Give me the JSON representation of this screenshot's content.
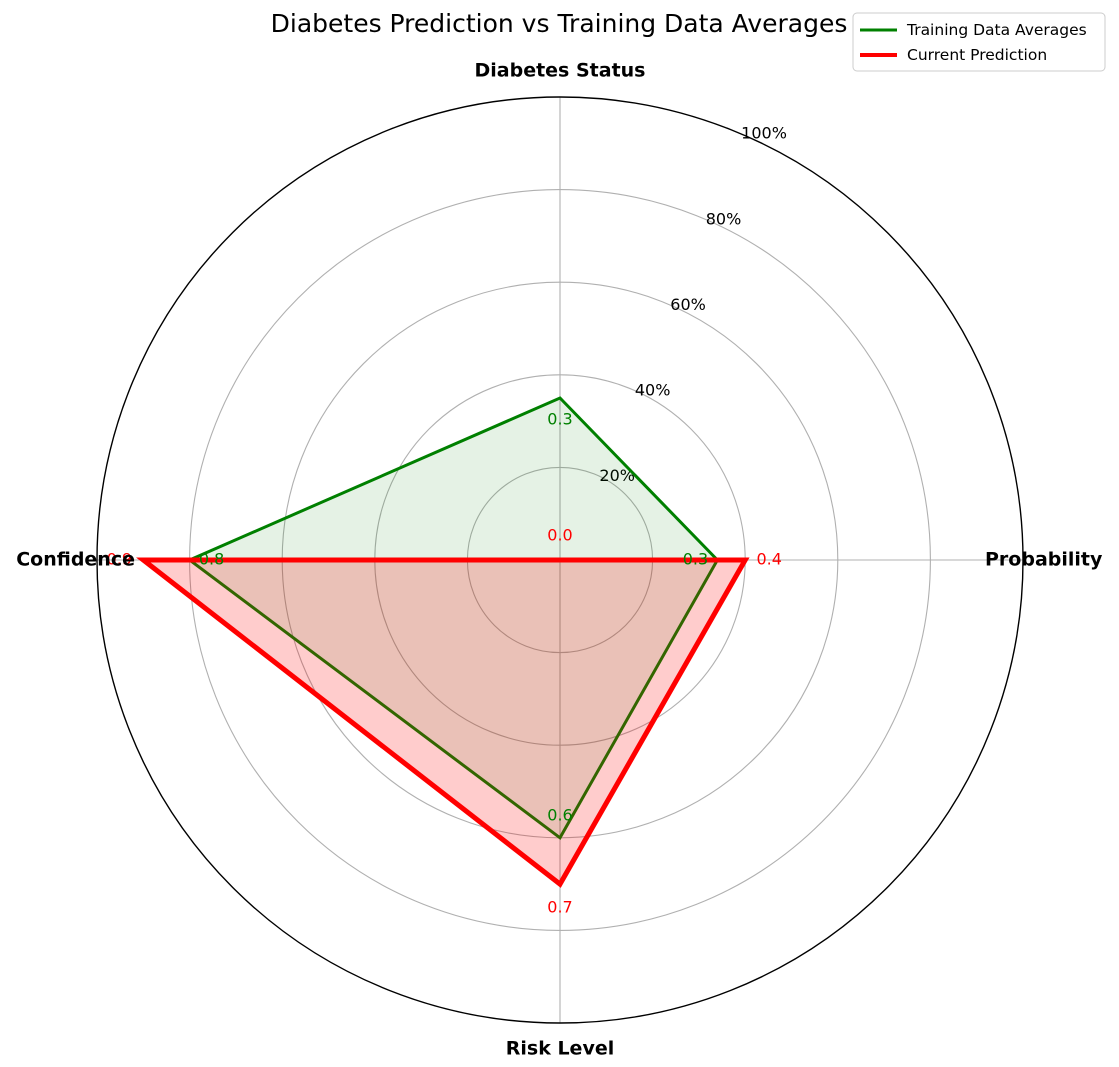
{
  "chart_data": {
    "type": "radar",
    "title": "Diabetes Prediction vs Training Data Averages",
    "axes": [
      "Probability",
      "Diabetes Status",
      "Confidence",
      "Risk Level"
    ],
    "radial_ticks": [
      0.2,
      0.4,
      0.6,
      0.8,
      1.0
    ],
    "radial_tick_labels": [
      "20%",
      "40%",
      "60%",
      "80%",
      "100%"
    ],
    "rlim": [
      0,
      1.0
    ],
    "grid": true,
    "legend_position": "top-right",
    "series": [
      {
        "name": "Training Data Averages",
        "color": "#008000",
        "values": [
          0.34,
          0.35,
          0.8,
          0.6
        ],
        "value_labels": [
          "0.3",
          "0.3",
          "0.8",
          "0.6"
        ]
      },
      {
        "name": "Current Prediction",
        "color": "#ff0000",
        "values": [
          0.4,
          0.0,
          0.9,
          0.7
        ],
        "value_labels": [
          "0.4",
          "0.0",
          "0.9",
          "0.7"
        ]
      }
    ]
  }
}
